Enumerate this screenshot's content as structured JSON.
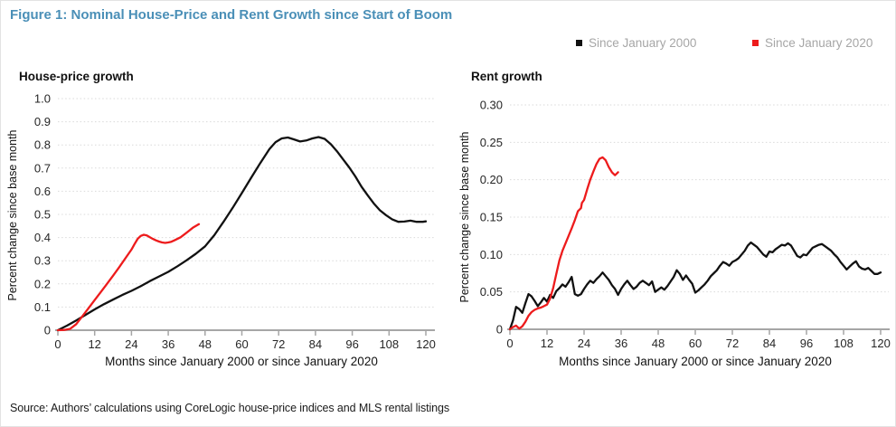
{
  "figure": {
    "title": "Figure 1: Nominal House-Price and Rent Growth since Start of Boom",
    "source": "Source: Authors’ calculations using CoreLogic house-price indices and MLS rental listings",
    "colors": {
      "title_blue": "#4a8fb7",
      "series_since_2000": "#111111",
      "series_since_2020": "#ed1b1c",
      "legend_text": "#a6a6a6",
      "axis_gray": "#a6a6a6",
      "grid_gray": "#d9d9d9",
      "tick_text": "#262626"
    }
  },
  "legend": {
    "items": [
      {
        "label": "Since January 2000",
        "color": "#111111"
      },
      {
        "label": "Since January 2020",
        "color": "#ed1b1c"
      }
    ]
  },
  "chart_data": [
    {
      "type": "line",
      "title": "House-price growth",
      "xlabel": "Months since January 2000 or since January 2020",
      "ylabel": "Percent change since base month",
      "xlim": [
        0,
        120
      ],
      "ylim": [
        0,
        1.0
      ],
      "xticks": [
        0,
        12,
        24,
        36,
        48,
        60,
        72,
        84,
        96,
        108,
        120
      ],
      "yticks": [
        {
          "v": 0,
          "label": "0"
        },
        {
          "v": 0.1,
          "label": "0.1"
        },
        {
          "v": 0.2,
          "label": "0.2"
        },
        {
          "v": 0.3,
          "label": "0.3"
        },
        {
          "v": 0.4,
          "label": "0.4"
        },
        {
          "v": 0.5,
          "label": "0.5"
        },
        {
          "v": 0.6,
          "label": "0.6"
        },
        {
          "v": 0.7,
          "label": "0.7"
        },
        {
          "v": 0.8,
          "label": "0.8"
        },
        {
          "v": 0.9,
          "label": "0.9"
        },
        {
          "v": 1.0,
          "label": "1.0"
        }
      ],
      "grid": "horizontal-dotted",
      "legend_position": "top-right-of-figure",
      "series": [
        {
          "name": "Since January 2000",
          "color": "#111111",
          "points": [
            [
              0,
              0
            ],
            [
              3,
              0.02
            ],
            [
              6,
              0.042
            ],
            [
              9,
              0.066
            ],
            [
              12,
              0.09
            ],
            [
              15,
              0.112
            ],
            [
              18,
              0.132
            ],
            [
              21,
              0.152
            ],
            [
              24,
              0.17
            ],
            [
              27,
              0.19
            ],
            [
              30,
              0.212
            ],
            [
              33,
              0.232
            ],
            [
              36,
              0.252
            ],
            [
              39,
              0.276
            ],
            [
              42,
              0.302
            ],
            [
              45,
              0.33
            ],
            [
              48,
              0.362
            ],
            [
              51,
              0.41
            ],
            [
              54,
              0.468
            ],
            [
              57,
              0.528
            ],
            [
              60,
              0.592
            ],
            [
              63,
              0.658
            ],
            [
              66,
              0.722
            ],
            [
              69,
              0.782
            ],
            [
              71,
              0.812
            ],
            [
              73,
              0.828
            ],
            [
              75,
              0.832
            ],
            [
              77,
              0.824
            ],
            [
              79,
              0.815
            ],
            [
              81,
              0.819
            ],
            [
              83,
              0.828
            ],
            [
              85,
              0.834
            ],
            [
              87,
              0.826
            ],
            [
              89,
              0.803
            ],
            [
              91,
              0.773
            ],
            [
              93,
              0.738
            ],
            [
              95,
              0.703
            ],
            [
              97,
              0.664
            ],
            [
              99,
              0.62
            ],
            [
              101,
              0.583
            ],
            [
              103,
              0.548
            ],
            [
              105,
              0.518
            ],
            [
              107,
              0.497
            ],
            [
              109,
              0.479
            ],
            [
              111,
              0.468
            ],
            [
              113,
              0.469
            ],
            [
              115,
              0.473
            ],
            [
              117,
              0.468
            ],
            [
              119,
              0.468
            ],
            [
              120,
              0.47
            ]
          ]
        },
        {
          "name": "Since January 2020",
          "color": "#ed1b1c",
          "points": [
            [
              0,
              0
            ],
            [
              2,
              0.001
            ],
            [
              4,
              0.006
            ],
            [
              6,
              0.026
            ],
            [
              8,
              0.06
            ],
            [
              10,
              0.095
            ],
            [
              12,
              0.13
            ],
            [
              14,
              0.165
            ],
            [
              16,
              0.2
            ],
            [
              18,
              0.235
            ],
            [
              20,
              0.272
            ],
            [
              22,
              0.31
            ],
            [
              24,
              0.348
            ],
            [
              25,
              0.372
            ],
            [
              26,
              0.394
            ],
            [
              27,
              0.407
            ],
            [
              28,
              0.412
            ],
            [
              29,
              0.409
            ],
            [
              30,
              0.401
            ],
            [
              31,
              0.394
            ],
            [
              32,
              0.388
            ],
            [
              33,
              0.383
            ],
            [
              34,
              0.379
            ],
            [
              35,
              0.377
            ],
            [
              36,
              0.379
            ],
            [
              37,
              0.382
            ],
            [
              38,
              0.388
            ],
            [
              40,
              0.401
            ],
            [
              42,
              0.421
            ],
            [
              44,
              0.442
            ],
            [
              45,
              0.45
            ],
            [
              46,
              0.458
            ]
          ]
        }
      ]
    },
    {
      "type": "line",
      "title": "Rent growth",
      "xlabel": "Months since January 2000 or since January 2020",
      "ylabel": "Percent change since base month",
      "xlim": [
        0,
        120
      ],
      "ylim": [
        0,
        0.3
      ],
      "xticks": [
        0,
        12,
        24,
        36,
        48,
        60,
        72,
        84,
        96,
        108,
        120
      ],
      "yticks": [
        {
          "v": 0,
          "label": "0"
        },
        {
          "v": 0.05,
          "label": "0.05"
        },
        {
          "v": 0.1,
          "label": "0.10"
        },
        {
          "v": 0.15,
          "label": "0.15"
        },
        {
          "v": 0.2,
          "label": "0.20"
        },
        {
          "v": 0.25,
          "label": "0.25"
        },
        {
          "v": 0.3,
          "label": "0.30"
        }
      ],
      "grid": "horizontal-dotted",
      "legend_position": "top-right-of-figure",
      "series": [
        {
          "name": "Since January 2000",
          "color": "#111111",
          "points": [
            [
              0,
              0
            ],
            [
              1,
              0.012
            ],
            [
              2,
              0.03
            ],
            [
              3,
              0.027
            ],
            [
              4,
              0.022
            ],
            [
              5,
              0.035
            ],
            [
              6,
              0.047
            ],
            [
              7,
              0.044
            ],
            [
              8,
              0.038
            ],
            [
              9,
              0.031
            ],
            [
              10,
              0.036
            ],
            [
              11,
              0.042
            ],
            [
              12,
              0.037
            ],
            [
              13,
              0.046
            ],
            [
              14,
              0.042
            ],
            [
              15,
              0.051
            ],
            [
              16,
              0.055
            ],
            [
              17,
              0.06
            ],
            [
              18,
              0.057
            ],
            [
              19,
              0.063
            ],
            [
              20,
              0.07
            ],
            [
              21,
              0.047
            ],
            [
              22,
              0.045
            ],
            [
              23,
              0.047
            ],
            [
              24,
              0.054
            ],
            [
              25,
              0.06
            ],
            [
              26,
              0.065
            ],
            [
              27,
              0.062
            ],
            [
              28,
              0.067
            ],
            [
              29,
              0.071
            ],
            [
              30,
              0.076
            ],
            [
              31,
              0.071
            ],
            [
              32,
              0.066
            ],
            [
              33,
              0.059
            ],
            [
              34,
              0.054
            ],
            [
              35,
              0.046
            ],
            [
              36,
              0.054
            ],
            [
              37,
              0.06
            ],
            [
              38,
              0.065
            ],
            [
              39,
              0.059
            ],
            [
              40,
              0.054
            ],
            [
              41,
              0.057
            ],
            [
              42,
              0.062
            ],
            [
              43,
              0.065
            ],
            [
              44,
              0.062
            ],
            [
              45,
              0.059
            ],
            [
              46,
              0.064
            ],
            [
              47,
              0.05
            ],
            [
              48,
              0.053
            ],
            [
              49,
              0.056
            ],
            [
              50,
              0.053
            ],
            [
              51,
              0.058
            ],
            [
              52,
              0.064
            ],
            [
              53,
              0.07
            ],
            [
              54,
              0.079
            ],
            [
              55,
              0.074
            ],
            [
              56,
              0.066
            ],
            [
              57,
              0.072
            ],
            [
              58,
              0.066
            ],
            [
              59,
              0.061
            ],
            [
              60,
              0.049
            ],
            [
              61,
              0.052
            ],
            [
              62,
              0.056
            ],
            [
              63,
              0.06
            ],
            [
              64,
              0.065
            ],
            [
              65,
              0.071
            ],
            [
              66,
              0.075
            ],
            [
              67,
              0.079
            ],
            [
              68,
              0.085
            ],
            [
              69,
              0.09
            ],
            [
              70,
              0.088
            ],
            [
              71,
              0.085
            ],
            [
              72,
              0.09
            ],
            [
              73,
              0.092
            ],
            [
              74,
              0.095
            ],
            [
              75,
              0.1
            ],
            [
              76,
              0.105
            ],
            [
              77,
              0.112
            ],
            [
              78,
              0.116
            ],
            [
              79,
              0.113
            ],
            [
              80,
              0.11
            ],
            [
              81,
              0.105
            ],
            [
              82,
              0.1
            ],
            [
              83,
              0.097
            ],
            [
              84,
              0.104
            ],
            [
              85,
              0.103
            ],
            [
              86,
              0.107
            ],
            [
              87,
              0.11
            ],
            [
              88,
              0.113
            ],
            [
              89,
              0.112
            ],
            [
              90,
              0.115
            ],
            [
              91,
              0.112
            ],
            [
              92,
              0.105
            ],
            [
              93,
              0.098
            ],
            [
              94,
              0.096
            ],
            [
              95,
              0.1
            ],
            [
              96,
              0.099
            ],
            [
              97,
              0.104
            ],
            [
              98,
              0.109
            ],
            [
              99,
              0.111
            ],
            [
              100,
              0.113
            ],
            [
              101,
              0.114
            ],
            [
              102,
              0.111
            ],
            [
              103,
              0.108
            ],
            [
              104,
              0.105
            ],
            [
              105,
              0.1
            ],
            [
              106,
              0.096
            ],
            [
              107,
              0.09
            ],
            [
              108,
              0.085
            ],
            [
              109,
              0.08
            ],
            [
              110,
              0.084
            ],
            [
              111,
              0.088
            ],
            [
              112,
              0.091
            ],
            [
              113,
              0.084
            ],
            [
              114,
              0.081
            ],
            [
              115,
              0.08
            ],
            [
              116,
              0.082
            ],
            [
              117,
              0.078
            ],
            [
              118,
              0.074
            ],
            [
              119,
              0.074
            ],
            [
              120,
              0.076
            ]
          ]
        },
        {
          "name": "Since January 2020",
          "color": "#ed1b1c",
          "points": [
            [
              0,
              0
            ],
            [
              1,
              0.003
            ],
            [
              2,
              0.005
            ],
            [
              3,
              0.001
            ],
            [
              4,
              0.004
            ],
            [
              5,
              0.01
            ],
            [
              6,
              0.018
            ],
            [
              7,
              0.023
            ],
            [
              8,
              0.026
            ],
            [
              9,
              0.028
            ],
            [
              10,
              0.029
            ],
            [
              11,
              0.031
            ],
            [
              12,
              0.033
            ],
            [
              13,
              0.041
            ],
            [
              14,
              0.055
            ],
            [
              15,
              0.074
            ],
            [
              16,
              0.092
            ],
            [
              17,
              0.105
            ],
            [
              18,
              0.115
            ],
            [
              19,
              0.125
            ],
            [
              20,
              0.135
            ],
            [
              21,
              0.146
            ],
            [
              22,
              0.158
            ],
            [
              23,
              0.162
            ],
            [
              23.3,
              0.169
            ],
            [
              24,
              0.173
            ],
            [
              25,
              0.187
            ],
            [
              26,
              0.2
            ],
            [
              27,
              0.211
            ],
            [
              28,
              0.221
            ],
            [
              29,
              0.228
            ],
            [
              30,
              0.23
            ],
            [
              31,
              0.226
            ],
            [
              32,
              0.217
            ],
            [
              33,
              0.21
            ],
            [
              34,
              0.206
            ],
            [
              35,
              0.21
            ]
          ]
        }
      ]
    }
  ]
}
